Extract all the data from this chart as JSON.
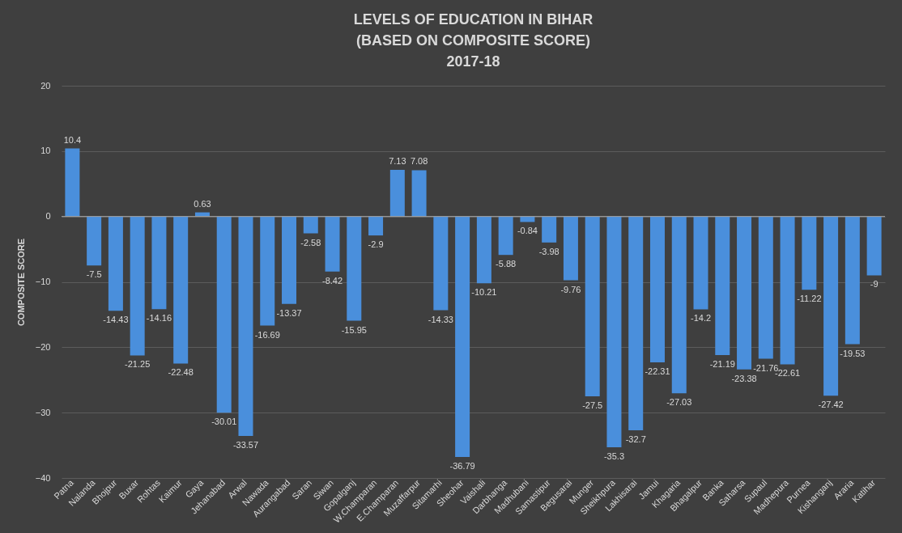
{
  "chart_data": {
    "type": "bar",
    "title": [
      "LEVELS OF EDUCATION IN BIHAR",
      "(BASED ON COMPOSITE SCORE)",
      "2017-18"
    ],
    "ylabel": "COMPOSITE SCORE",
    "categories": [
      "Patna",
      "Nalanda",
      "Bhojpur",
      "Buxar",
      "Rohtas",
      "Kaimur",
      "Gaya",
      "Jehanabad",
      "Arwal",
      "Nawada",
      "Aurangabad",
      "Saran",
      "Siwan",
      "Gopalganj",
      "W.Champaran",
      "E.Champaran",
      "Muzaffarpur",
      "Sitamarhi",
      "Sheohar",
      "Vaishali",
      "Darbhanga",
      "Madhubani",
      "Samastipur",
      "Begusarai",
      "Munger",
      "Sheikhpura",
      "Lakhisarai",
      "Jamui",
      "Khagaria",
      "Bhagalpur",
      "Banka",
      "Saharsa",
      "Supaul",
      "Madhepura",
      "Purnea",
      "Kishanganj",
      "Araria",
      "Katihar"
    ],
    "values": [
      10.4,
      -7.5,
      -14.43,
      -21.25,
      -14.16,
      -22.48,
      0.63,
      -30.01,
      -33.57,
      -16.69,
      -13.37,
      -2.58,
      -8.42,
      -15.95,
      -2.9,
      7.13,
      7.08,
      -14.33,
      -36.79,
      -10.21,
      -5.88,
      -0.84,
      -3.98,
      -9.76,
      -27.5,
      -35.3,
      -32.7,
      -22.31,
      -27.03,
      -14.2,
      -21.19,
      -23.38,
      -21.76,
      -22.61,
      -11.22,
      -27.42,
      -19.53,
      -9
    ],
    "color": "#4a8fdc",
    "ylim": [
      -40,
      20
    ],
    "yticks": [
      -40,
      -30,
      -20,
      -10,
      0,
      10,
      20
    ],
    "grid": "y",
    "data_labels": true
  }
}
